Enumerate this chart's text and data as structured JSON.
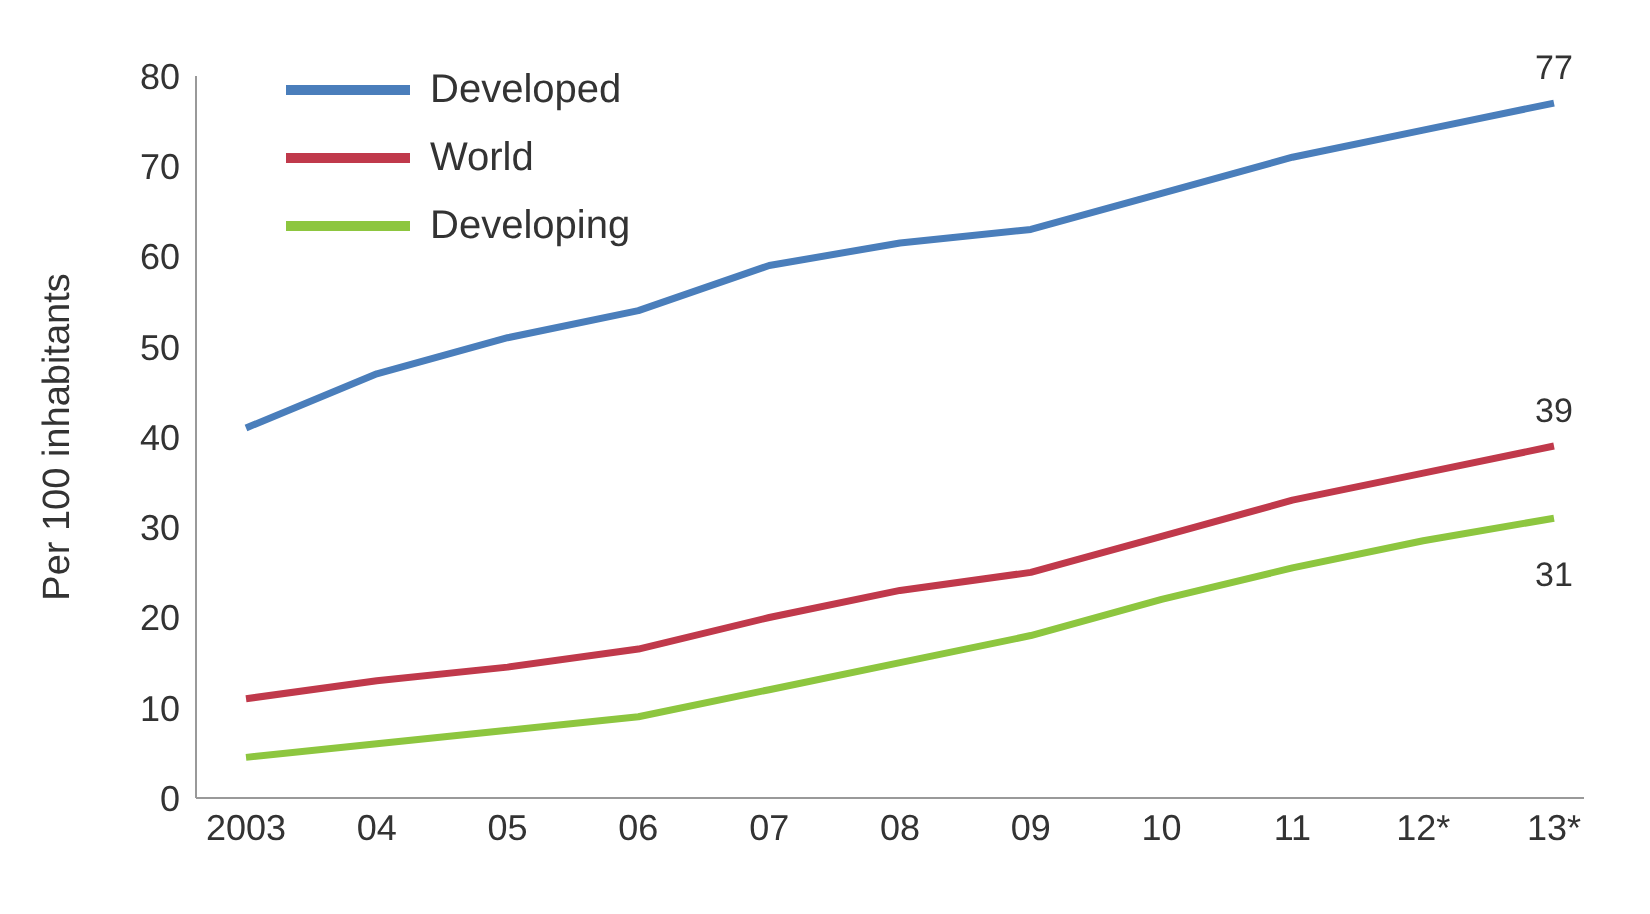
{
  "chart_data": {
    "type": "line",
    "ylabel": "Per 100 inhabitants",
    "categories": [
      "2003",
      "04",
      "05",
      "06",
      "07",
      "08",
      "09",
      "10",
      "11",
      "12*",
      "13*"
    ],
    "series": [
      {
        "name": "Developed",
        "color": "#4a7ebb",
        "values": [
          41,
          47,
          51,
          54,
          59,
          61.5,
          63,
          67,
          71,
          74,
          77
        ],
        "value_labels": [
          null,
          null,
          null,
          null,
          null,
          null,
          null,
          null,
          null,
          null,
          "77"
        ]
      },
      {
        "name": "World",
        "color": "#c0394b",
        "values": [
          11,
          13,
          14.5,
          16.5,
          20,
          23,
          25,
          29,
          33,
          36,
          39
        ],
        "value_labels": [
          null,
          null,
          null,
          null,
          null,
          null,
          null,
          null,
          null,
          null,
          "39"
        ]
      },
      {
        "name": "Developing",
        "color": "#8dc63f",
        "values": [
          4.5,
          6,
          7.5,
          9,
          12,
          15,
          18,
          22,
          25.5,
          28.5,
          31
        ],
        "value_labels": [
          null,
          null,
          null,
          null,
          null,
          null,
          null,
          null,
          null,
          null,
          "31"
        ]
      }
    ],
    "ylim": [
      0,
      80
    ],
    "yticks": [
      0,
      10,
      20,
      30,
      40,
      50,
      60,
      70,
      80
    ],
    "grid": false,
    "legend": "top left",
    "marker": "none",
    "line_style": "solid"
  }
}
